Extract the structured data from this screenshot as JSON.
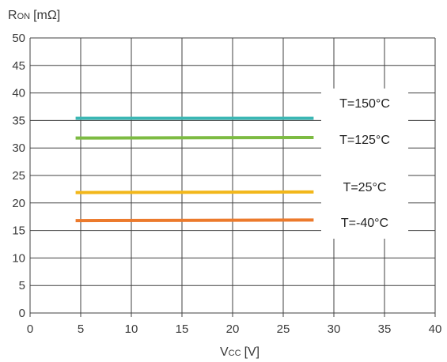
{
  "chart_data": {
    "type": "line",
    "title": "",
    "ylabel": {
      "main": "R",
      "sub": "ON",
      "unit": "[mΩ]"
    },
    "xlabel": {
      "main": "V",
      "sub": "CC",
      "unit": "[V]"
    },
    "xlim": [
      0,
      40
    ],
    "ylim": [
      0,
      50
    ],
    "xticks": [
      0,
      5,
      10,
      15,
      20,
      25,
      30,
      35,
      40
    ],
    "yticks": [
      0,
      5,
      10,
      15,
      20,
      25,
      30,
      35,
      40,
      45,
      50
    ],
    "grid": true,
    "legend_placement": "right, inline labels",
    "series": [
      {
        "name": "T=150°C",
        "color": "#3bb7b4",
        "x": [
          4.5,
          28
        ],
        "y": [
          35.4,
          35.4
        ]
      },
      {
        "name": "T=125°C",
        "color": "#7dbb42",
        "x": [
          4.5,
          28
        ],
        "y": [
          31.8,
          31.9
        ]
      },
      {
        "name": "T=25°C",
        "color": "#f2b71a",
        "x": [
          4.5,
          28
        ],
        "y": [
          21.9,
          22.0
        ]
      },
      {
        "name": "T=-40°C",
        "color": "#ec7a2c",
        "x": [
          4.5,
          28
        ],
        "y": [
          16.8,
          16.9
        ]
      }
    ]
  }
}
